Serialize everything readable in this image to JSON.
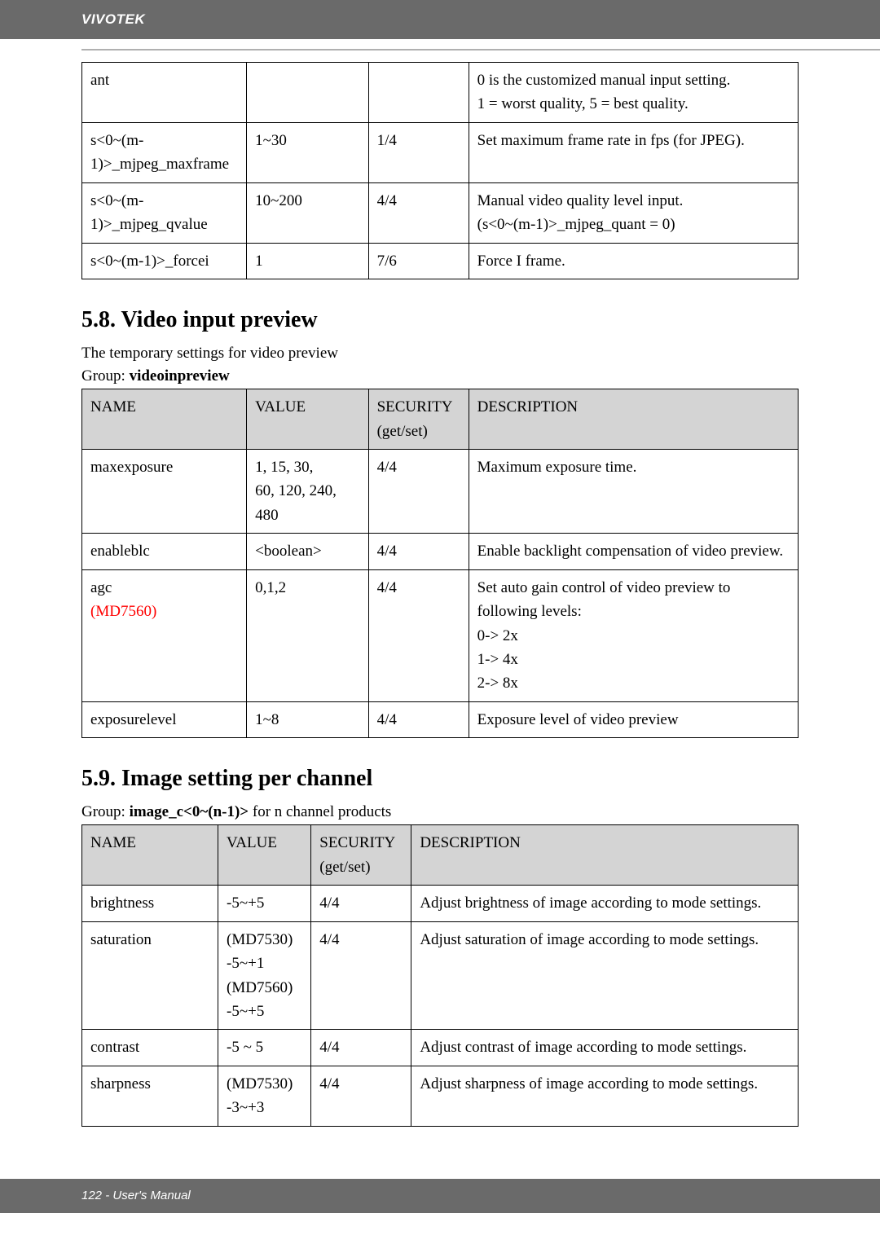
{
  "header": {
    "brand": "VIVOTEK"
  },
  "footer": {
    "text": "122 - User's Manual"
  },
  "table1": {
    "col_widths": [
      "23%",
      "17%",
      "14%",
      "46%"
    ],
    "rows": [
      {
        "name": "ant",
        "value": "",
        "sec": "",
        "desc": "0 is the customized manual input setting.\n1 = worst quality, 5 = best quality."
      },
      {
        "name": "s<0~(m-1)>_mjpeg_maxframe",
        "value": "1~30",
        "sec": "1/4",
        "desc": "Set maximum frame rate in fps (for JPEG)."
      },
      {
        "name": "s<0~(m-1)>_mjpeg_qvalue",
        "value": "10~200",
        "sec": "4/4",
        "desc": "Manual video quality level input.\n(s<0~(m-1)>_mjpeg_quant = 0)"
      },
      {
        "name": "s<0~(m-1)>_forcei",
        "value": "1",
        "sec": "7/6",
        "desc": "Force I frame."
      }
    ]
  },
  "section58": {
    "title": "5.8. Video input preview",
    "subtitle": "The temporary settings for video preview",
    "group_label": "Group: ",
    "group_value": "videoinpreview"
  },
  "table2": {
    "col_widths": [
      "23%",
      "17%",
      "14%",
      "46%"
    ],
    "headers": {
      "name": "NAME",
      "value": "VALUE",
      "sec": "SECURITY\n(get/set)",
      "desc": "DESCRIPTION"
    },
    "rows": [
      {
        "name": "maxexposure",
        "value": "1, 15, 30,\n60, 120, 240,\n480",
        "sec": "4/4",
        "desc": "Maximum exposure time."
      },
      {
        "name": "enableblc",
        "value": "<boolean>",
        "sec": "4/4",
        "desc": "Enable backlight compensation of video preview."
      },
      {
        "name": "agc",
        "name_extra_red": "(MD7560)",
        "value": "0,1,2",
        "sec": "4/4",
        "desc": "Set auto gain control of video preview to following levels:\n0-> 2x\n1-> 4x\n2-> 8x"
      },
      {
        "name": "exposurelevel",
        "value": "1~8",
        "sec": "4/4",
        "desc": "Exposure level of video preview"
      }
    ]
  },
  "section59": {
    "title": "5.9. Image setting per channel",
    "group_label": "Group: ",
    "group_value": "image_c<0~(n-1)>",
    "group_suffix": " for n channel products"
  },
  "table3": {
    "col_widths": [
      "19%",
      "13%",
      "14%",
      "54%"
    ],
    "headers": {
      "name": "NAME",
      "value": "VALUE",
      "sec": "SECURITY\n(get/set)",
      "desc": "DESCRIPTION"
    },
    "rows": [
      {
        "name": "brightness",
        "value": "-5~+5",
        "sec": "4/4",
        "desc": "Adjust brightness of image according to mode settings."
      },
      {
        "name": "saturation",
        "value": "(MD7530)\n-5~+1\n(MD7560)\n-5~+5",
        "sec": "4/4",
        "desc": "Adjust saturation of image according to mode settings."
      },
      {
        "name": "contrast",
        "value": "-5 ~ 5",
        "sec": "4/4",
        "desc": "Adjust contrast of image according to mode settings."
      },
      {
        "name": "sharpness",
        "value": "(MD7530)\n-3~+3",
        "sec": "4/4",
        "desc": "Adjust sharpness of image according to mode settings."
      }
    ]
  }
}
